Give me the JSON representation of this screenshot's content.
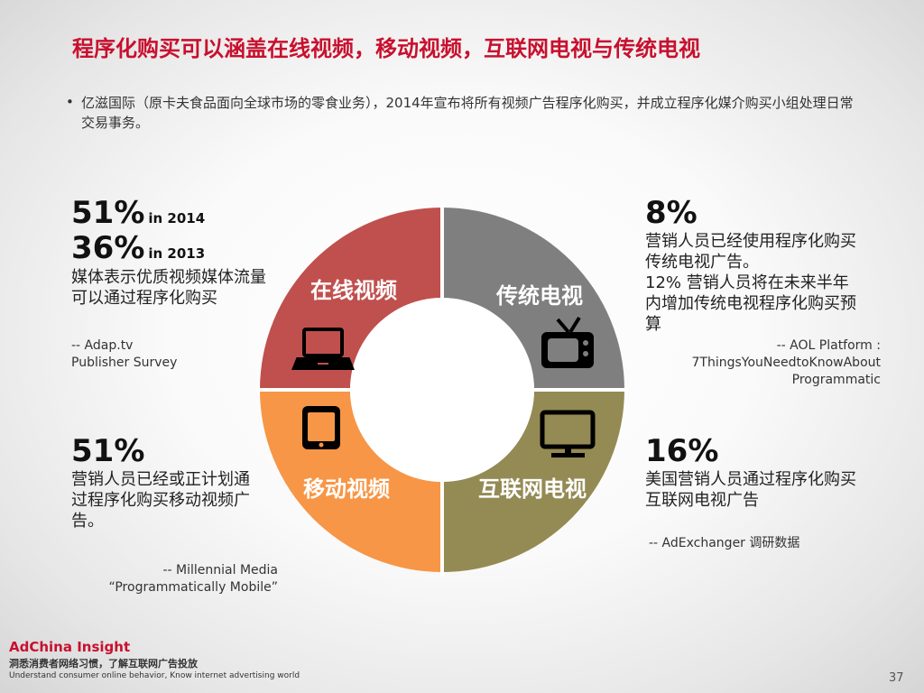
{
  "title": "程序化购买可以涵盖在线视频，移动视频，互联网电视与传统电视",
  "bullet": "亿滋国际（原卡夫食品面向全球市场的零食业务），2014年宣布将所有视频广告程序化购买，并成立程序化媒介购买小组处理日常交易事务。",
  "bullet_marker": "•",
  "segments": [
    {
      "label": "在线视频",
      "color": "#c0504d",
      "icon": "laptop-icon"
    },
    {
      "label": "传统电视",
      "color": "#7f7f7f",
      "icon": "tv-icon"
    },
    {
      "label": "移动视频",
      "color": "#f79646",
      "icon": "tablet-icon"
    },
    {
      "label": "互联网电视",
      "color": "#948a54",
      "icon": "monitor-icon"
    }
  ],
  "top_left": {
    "stat1": "51%",
    "stat1_suffix": "in 2014",
    "stat2": "36%",
    "stat2_suffix": "in 2013",
    "desc_line1": "媒体表示优质视频媒体流量",
    "desc_line2": "可以通过程序化购买",
    "source_line1": "-- Adap.tv",
    "source_line2": "Publisher Survey"
  },
  "top_right": {
    "stat": "8%",
    "desc_line1": "营销人员已经使用程序化购买",
    "desc_line2": "传统电视广告。",
    "desc_line3": "12% 营销人员将在未来半年",
    "desc_line4": "内增加传统电视程序化购买预",
    "desc_line5": "算",
    "source_line1": "-- AOL Platform :",
    "source_line2": "7ThingsYouNeedtoKnowAbout",
    "source_line3": "Programmatic"
  },
  "bottom_left": {
    "stat": "51%",
    "desc_line1": "营销人员已经或正计划通",
    "desc_line2": "过程序化购买移动视频广",
    "desc_line3": "告。",
    "source_line1": "-- Millennial Media",
    "source_line2": "“Programmatically Mobile”"
  },
  "bottom_right": {
    "stat": "16%",
    "desc_line1": "美国营销人员通过程序化购买",
    "desc_line2": "互联网电视广告",
    "source_line1": "-- AdExchanger 调研数据"
  },
  "footer": {
    "brand": "AdChina Insight",
    "tagline_cn": "洞悉消费者网络习惯，了解互联网广告投放",
    "tagline_en": "Understand consumer online behavior, Know internet advertising world",
    "page_number": "37"
  }
}
